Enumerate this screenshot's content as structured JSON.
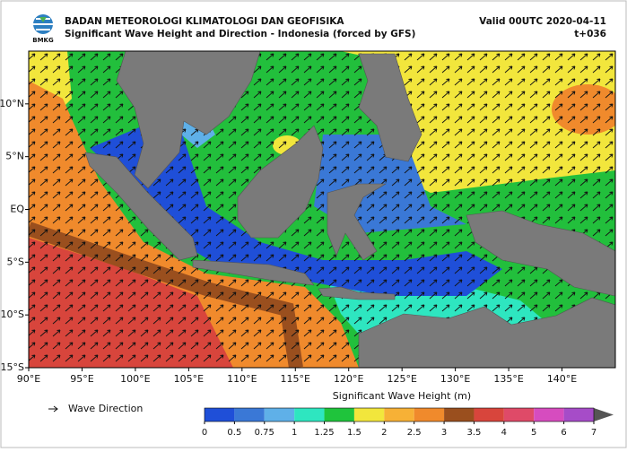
{
  "header": {
    "logo_text": "BMKG",
    "agency": "BADAN METEOROLOGI KLIMATOLOGI DAN GEOFISIKA",
    "title": "Significant Wave Height and Direction - Indonesia (forced by GFS)",
    "valid": "Valid 00UTC 2020-04-11",
    "lead_time": "t+036"
  },
  "map": {
    "lonlim": [
      90,
      145
    ],
    "latlim": [
      -15,
      15
    ],
    "lon_ticks": [
      {
        "value": 90,
        "label": "90°E"
      },
      {
        "value": 95,
        "label": "95°E"
      },
      {
        "value": 100,
        "label": "100°E"
      },
      {
        "value": 105,
        "label": "105°E"
      },
      {
        "value": 110,
        "label": "110°E"
      },
      {
        "value": 115,
        "label": "115°E"
      },
      {
        "value": 120,
        "label": "120°E"
      },
      {
        "value": 125,
        "label": "125°E"
      },
      {
        "value": 130,
        "label": "130°E"
      },
      {
        "value": 135,
        "label": "135°E"
      },
      {
        "value": 140,
        "label": "140°E"
      }
    ],
    "lat_ticks": [
      {
        "value": 10,
        "label": "10°N"
      },
      {
        "value": 5,
        "label": "5°N"
      },
      {
        "value": 0,
        "label": "EQ"
      },
      {
        "value": -5,
        "label": "5°S"
      },
      {
        "value": -10,
        "label": "10°S"
      },
      {
        "value": -15,
        "label": "15°S"
      }
    ]
  },
  "legend": {
    "wave_direction": "Wave Direction"
  },
  "colorbar": {
    "title": "Significant Wave Height (m)",
    "levels": [
      0,
      0.5,
      0.75,
      1,
      1.25,
      1.5,
      2,
      2.5,
      3,
      3.5,
      4,
      5,
      6,
      7
    ],
    "colors": [
      "#1f4fd8",
      "#3a78d6",
      "#5fb0e8",
      "#2ee6c0",
      "#1fc43c",
      "#f2e63c",
      "#f7b136",
      "#f08a2c",
      "#9a4f1e",
      "#d8453c",
      "#df4a68",
      "#d64cbf",
      "#a64cc8"
    ],
    "extend_color": "#555555"
  }
}
